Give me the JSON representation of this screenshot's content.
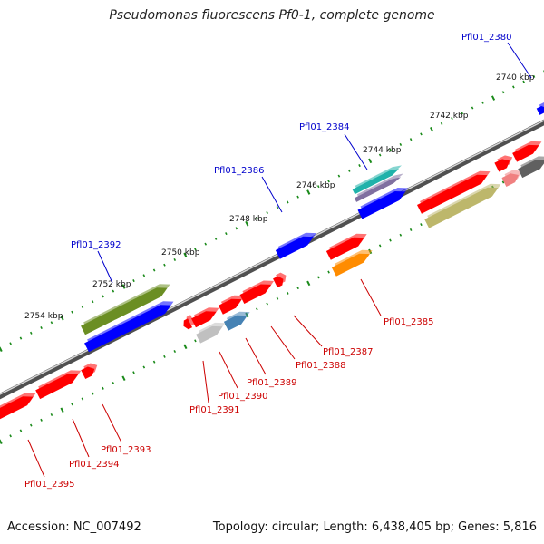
{
  "title": "Pseudomonas fluorescens Pf0-1, complete genome",
  "accession": "Accession: NC_007492",
  "summary": "Topology: circular; Length: 6,438,405 bp; Genes: 5,816",
  "kbp_labels": [
    "2740 kbp",
    "2742 kbp",
    "2744 kbp",
    "2746 kbp",
    "2748 kbp",
    "2750 kbp",
    "2752 kbp",
    "2754 kbp"
  ],
  "genes_upper": [
    "Pfl01_2380",
    "Pfl01_2384",
    "Pfl01_2386",
    "Pfl01_2392"
  ],
  "genes_lower": [
    "Pfl01_2385",
    "Pfl01_2387",
    "Pfl01_2388",
    "Pfl01_2389",
    "Pfl01_2390",
    "Pfl01_2391",
    "Pfl01_2393",
    "Pfl01_2394",
    "Pfl01_2395"
  ],
  "colors": {
    "upper_label": "#0000cc",
    "lower_label": "#cc0000",
    "red": "#ff0000",
    "blue": "#0000ff",
    "olive": "#6b8e23",
    "khaki": "#bdb76b",
    "orange": "#ff8c00",
    "cyan": "#20b2aa",
    "steelblue": "#4682b4",
    "gray": "#c0c0c0",
    "dim": "#606060",
    "pink": "#f08080",
    "tick": "#1a8a1a",
    "backbone": "#808080"
  }
}
